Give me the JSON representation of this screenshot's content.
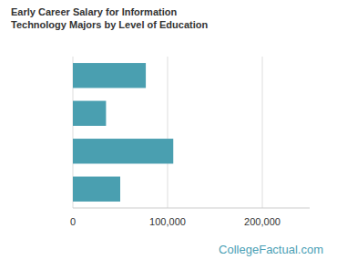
{
  "chart_data": {
    "type": "bar",
    "title": "Early Career Salary for Information Technology Majors by Level of Education",
    "orientation": "horizontal",
    "categories": [
      null,
      null,
      null,
      null
    ],
    "values": [
      77000,
      35000,
      106000,
      50000
    ],
    "color": "#4a9fb0",
    "xlim": [
      0,
      250000
    ],
    "xticks": [
      0,
      {
        "value": 100000,
        "label": "100,000"
      },
      {
        "value": 200000,
        "label": "200,000"
      }
    ],
    "grid": true,
    "tick_labels": "x",
    "annotation": "CollegeFactual.com"
  }
}
